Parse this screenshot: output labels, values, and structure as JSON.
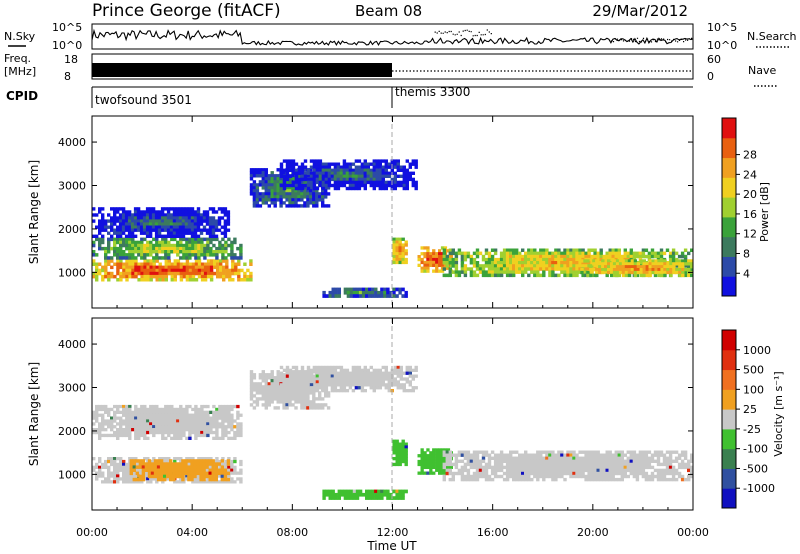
{
  "header": {
    "station": "Prince George (fitACF)",
    "beam": "Beam 08",
    "date": "29/Mar/2012"
  },
  "noise_panel": {
    "left_label": "N.Sky",
    "right_label": "N.Search",
    "left_ticks": [
      "10^5",
      "10^0"
    ],
    "right_ticks": [
      "10^5",
      "10^0"
    ]
  },
  "freq_panel": {
    "left_label_1": "Freq.",
    "left_label_2": "[MHz]",
    "right_label": "Nave",
    "left_ticks": [
      "18",
      "8"
    ],
    "right_ticks": [
      "60",
      "0"
    ],
    "freq_segments": [
      {
        "start_hour": 0.0,
        "end_hour": 12.0,
        "style": "solid"
      },
      {
        "start_hour": 12.0,
        "end_hour": 24.0,
        "style": "dotted"
      }
    ]
  },
  "cpid_panel": {
    "label": "CPID",
    "programs": [
      {
        "name": "twofsound 3501",
        "start_hour": 0.0
      },
      {
        "name": "themis 3300",
        "start_hour": 12.0
      }
    ]
  },
  "chart_data": [
    {
      "type": "heatmap",
      "ylabel": "Slant Range [km]",
      "xlabel": "Time UT",
      "x_ticks": [
        "00:00",
        "04:00",
        "08:00",
        "12:00",
        "16:00",
        "20:00",
        "00:00"
      ],
      "y_ticks": [
        1000,
        2000,
        3000,
        4000
      ],
      "xlim": [
        0,
        24
      ],
      "ylim": [
        180,
        4600
      ],
      "colorbar": {
        "label": "Power [dB]",
        "ticks": [
          "4",
          "8",
          "12",
          "16",
          "20",
          "24",
          "28"
        ],
        "colors": [
          "#1010e0",
          "#2c4aa8",
          "#3c7a5e",
          "#3aa23a",
          "#a0d030",
          "#f0d020",
          "#f0a020",
          "#e86010",
          "#e01010"
        ]
      },
      "blobs": [
        {
          "t0": 0.0,
          "t1": 6.4,
          "r0": 800,
          "r1": 1300,
          "level": 8
        },
        {
          "t0": 0.0,
          "t1": 6.0,
          "r0": 1300,
          "r1": 1800,
          "level": 5
        },
        {
          "t0": 0.0,
          "t1": 5.5,
          "r0": 1800,
          "r1": 2500,
          "level": 2
        },
        {
          "t0": 6.3,
          "t1": 9.5,
          "r0": 2500,
          "r1": 3400,
          "level": 3
        },
        {
          "t0": 7.5,
          "t1": 13.0,
          "r0": 2900,
          "r1": 3600,
          "level": 2
        },
        {
          "t0": 9.2,
          "t1": 12.6,
          "r0": 420,
          "r1": 650,
          "level": 3
        },
        {
          "t0": 12.0,
          "t1": 12.6,
          "r0": 1200,
          "r1": 1800,
          "level": 7
        },
        {
          "t0": 13.0,
          "t1": 14.4,
          "r0": 1000,
          "r1": 1600,
          "level": 8
        },
        {
          "t0": 14.0,
          "t1": 24.0,
          "r0": 900,
          "r1": 1550,
          "level": 6
        },
        {
          "t0": 19.5,
          "t1": 24.0,
          "r0": 900,
          "r1": 1300,
          "level": 7
        }
      ]
    },
    {
      "type": "heatmap",
      "ylabel": "Slant Range [km]",
      "xlabel": "Time UT",
      "x_ticks": [
        "00:00",
        "04:00",
        "08:00",
        "12:00",
        "16:00",
        "20:00",
        "00:00"
      ],
      "y_ticks": [
        1000,
        2000,
        3000,
        4000
      ],
      "xlim": [
        0,
        24
      ],
      "ylim": [
        180,
        4600
      ],
      "colorbar": {
        "label": "Velocity [m s⁻¹]",
        "ticks": [
          "1000",
          "500",
          "100",
          "25",
          "-25",
          "-100",
          "-500",
          "-1000"
        ],
        "colors": [
          "#1010c0",
          "#3050a0",
          "#3a8050",
          "#40c030",
          "#c8c8c8",
          "#f0a020",
          "#f07020",
          "#e03010",
          "#d00000"
        ]
      },
      "blobs": [
        {
          "t0": 0.0,
          "t1": 6.0,
          "r0": 800,
          "r1": 1400,
          "color": "gray"
        },
        {
          "t0": 1.5,
          "t1": 5.5,
          "r0": 850,
          "r1": 1350,
          "color": "orange"
        },
        {
          "t0": 0.0,
          "t1": 6.0,
          "r0": 1800,
          "r1": 2600,
          "color": "gray"
        },
        {
          "t0": 6.3,
          "t1": 9.5,
          "r0": 2500,
          "r1": 3400,
          "color": "gray"
        },
        {
          "t0": 7.5,
          "t1": 13.0,
          "r0": 2900,
          "r1": 3500,
          "color": "gray"
        },
        {
          "t0": 9.2,
          "t1": 12.6,
          "r0": 420,
          "r1": 650,
          "color": "green"
        },
        {
          "t0": 12.0,
          "t1": 12.6,
          "r0": 1200,
          "r1": 1800,
          "color": "green"
        },
        {
          "t0": 13.0,
          "t1": 14.4,
          "r0": 1000,
          "r1": 1600,
          "color": "green"
        },
        {
          "t0": 14.0,
          "t1": 24.0,
          "r0": 850,
          "r1": 1550,
          "color": "gray"
        }
      ]
    }
  ]
}
